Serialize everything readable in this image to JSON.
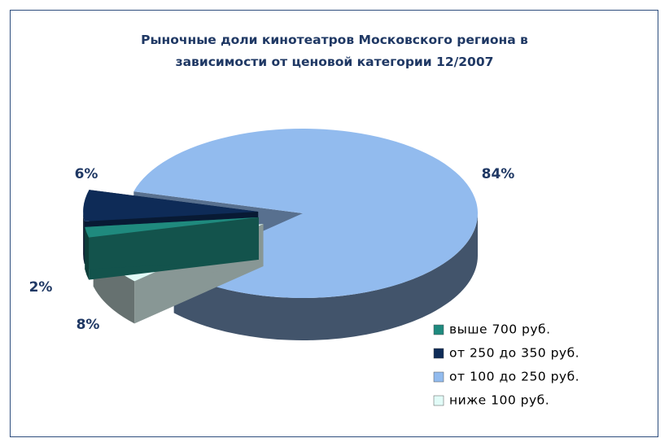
{
  "chart_data": {
    "type": "pie",
    "title": "Рыночные доли кинотеатров Московского региона в",
    "subtitle": "зависимости от ценовой категории 12/2007",
    "categories": [
      "выше 700 руб.",
      "от 250 до 350 руб.",
      "от 100 до 250 руб.",
      "ниже 100 руб."
    ],
    "values": [
      2,
      6,
      84,
      8
    ],
    "value_labels": [
      "2%",
      "6%",
      "84%",
      "8%"
    ],
    "colors": [
      "#1f8a7e",
      "#0e2b57",
      "#92bbee",
      "#e2fcf8"
    ]
  }
}
